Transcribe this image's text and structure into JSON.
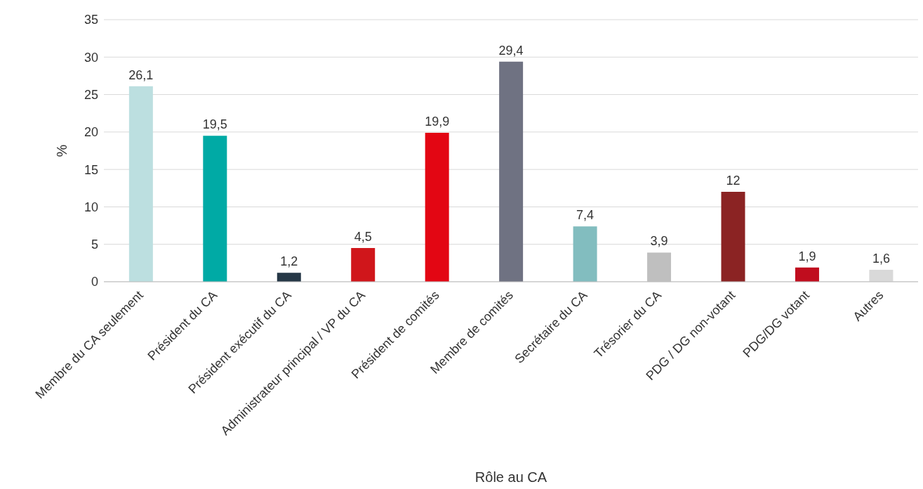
{
  "chart_data": {
    "type": "bar",
    "xlabel": "Rôle au CA",
    "ylabel": "%",
    "categories": [
      "Membre du CA seulement",
      "Président du CA",
      "Président exécutif du CA",
      "Administrateur principal / VP du CA",
      "Président de comités",
      "Membre de comités",
      "Secrétaire du CA",
      "Trésorier du CA",
      "PDG / DG non-votant",
      "PDG/DG votant",
      "Autres"
    ],
    "values": [
      26.1,
      19.5,
      1.2,
      4.5,
      19.9,
      29.4,
      7.4,
      3.9,
      12,
      1.9,
      1.6
    ],
    "value_labels": [
      "26,1",
      "19,5",
      "1,2",
      "4,5",
      "19,9",
      "29,4",
      "7,4",
      "3,9",
      "12",
      "1,9",
      "1,6"
    ],
    "colors": [
      "#bcdfe0",
      "#00aaa5",
      "#253746",
      "#d0161b",
      "#e30613",
      "#6f7282",
      "#82bdbf",
      "#bfbfbf",
      "#8b2323",
      "#c00d1e",
      "#d9d9d9"
    ],
    "ylim": [
      0,
      35
    ],
    "yticks": [
      0,
      5,
      10,
      15,
      20,
      25,
      30,
      35
    ],
    "grid": "y"
  }
}
